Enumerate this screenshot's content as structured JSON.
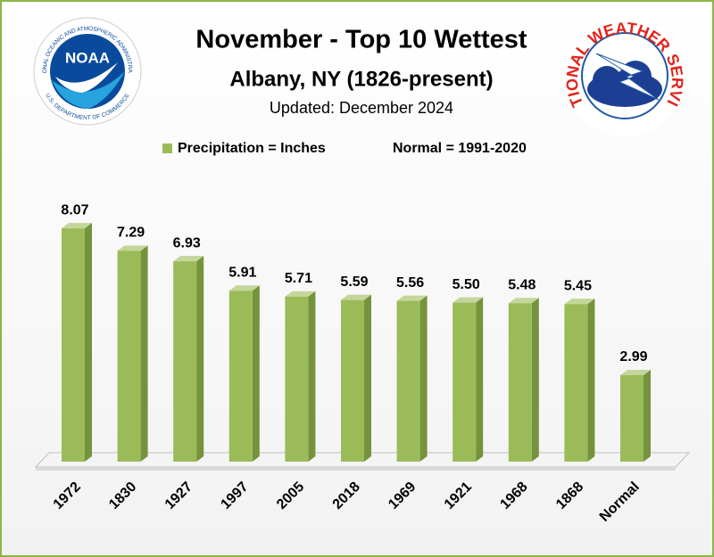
{
  "chart_data": {
    "type": "bar3d",
    "title": "November - Top 10 Wettest",
    "subtitle": "Albany, NY (1826-present)",
    "updated": "Updated: December 2024",
    "legend": {
      "series_label": "Precipitation = Inches",
      "normal_label": "Normal = 1991-2020"
    },
    "logos": {
      "noaa": {
        "name": "NOAA",
        "ring_top": "NATIONAL OCEANIC AND ATMOSPHERIC ADMINISTRATION",
        "ring_bottom": "U.S. DEPARTMENT OF COMMERCE"
      },
      "nws": {
        "ring": "NATIONAL WEATHER SERVICE"
      }
    },
    "categories": [
      "1972",
      "1830",
      "1927",
      "1997",
      "2005",
      "2018",
      "1969",
      "1921",
      "1968",
      "1868",
      "Normal"
    ],
    "values": [
      8.07,
      7.29,
      6.93,
      5.91,
      5.71,
      5.59,
      5.56,
      5.5,
      5.48,
      5.45,
      2.99
    ],
    "value_labels": [
      "8.07",
      "7.29",
      "6.93",
      "5.91",
      "5.71",
      "5.59",
      "5.56",
      "5.50",
      "5.48",
      "5.45",
      "2.99"
    ],
    "color": "#9bbb59",
    "ylim": [
      0,
      9
    ]
  }
}
